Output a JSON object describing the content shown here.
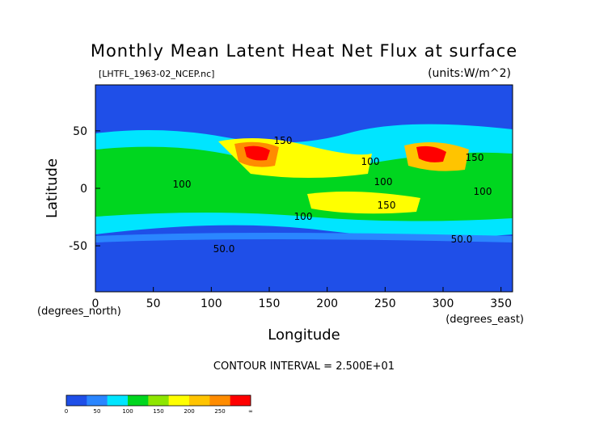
{
  "chart_data": {
    "type": "heatmap",
    "title": "Monthly Mean Latent Heat Net Flux at surface",
    "subtitle_left": "[LHTFL_1963-02_NCEP.nc]",
    "units_label": "(units:W/m^2)",
    "xlabel": "Longitude",
    "ylabel": "Latitude",
    "x_unit_note": "(degrees_east)",
    "y_unit_note": "(degrees_north)",
    "xlim": [
      0,
      360
    ],
    "ylim": [
      -90,
      90
    ],
    "x_ticks": [
      0,
      50,
      100,
      150,
      200,
      250,
      300,
      350
    ],
    "y_ticks": [
      -50,
      0,
      50
    ],
    "contour_interval_text": "CONTOUR INTERVAL = 2.500E+01",
    "contour_labels": [
      "150",
      "100",
      "100",
      "100",
      "100",
      "150",
      "150",
      "100",
      "50.0",
      "50.0"
    ],
    "colorbar": {
      "levels": [
        0,
        50,
        100,
        150,
        200,
        250
      ],
      "labels": [
        "0",
        "50",
        "100",
        "150",
        "200",
        "250",
        "∞"
      ],
      "colors": [
        "#1f4fe8",
        "#2a86ff",
        "#00e5ff",
        "#00d61f",
        "#8ee600",
        "#ffff00",
        "#ffc400",
        "#ff8c00",
        "#ff0000"
      ]
    }
  }
}
